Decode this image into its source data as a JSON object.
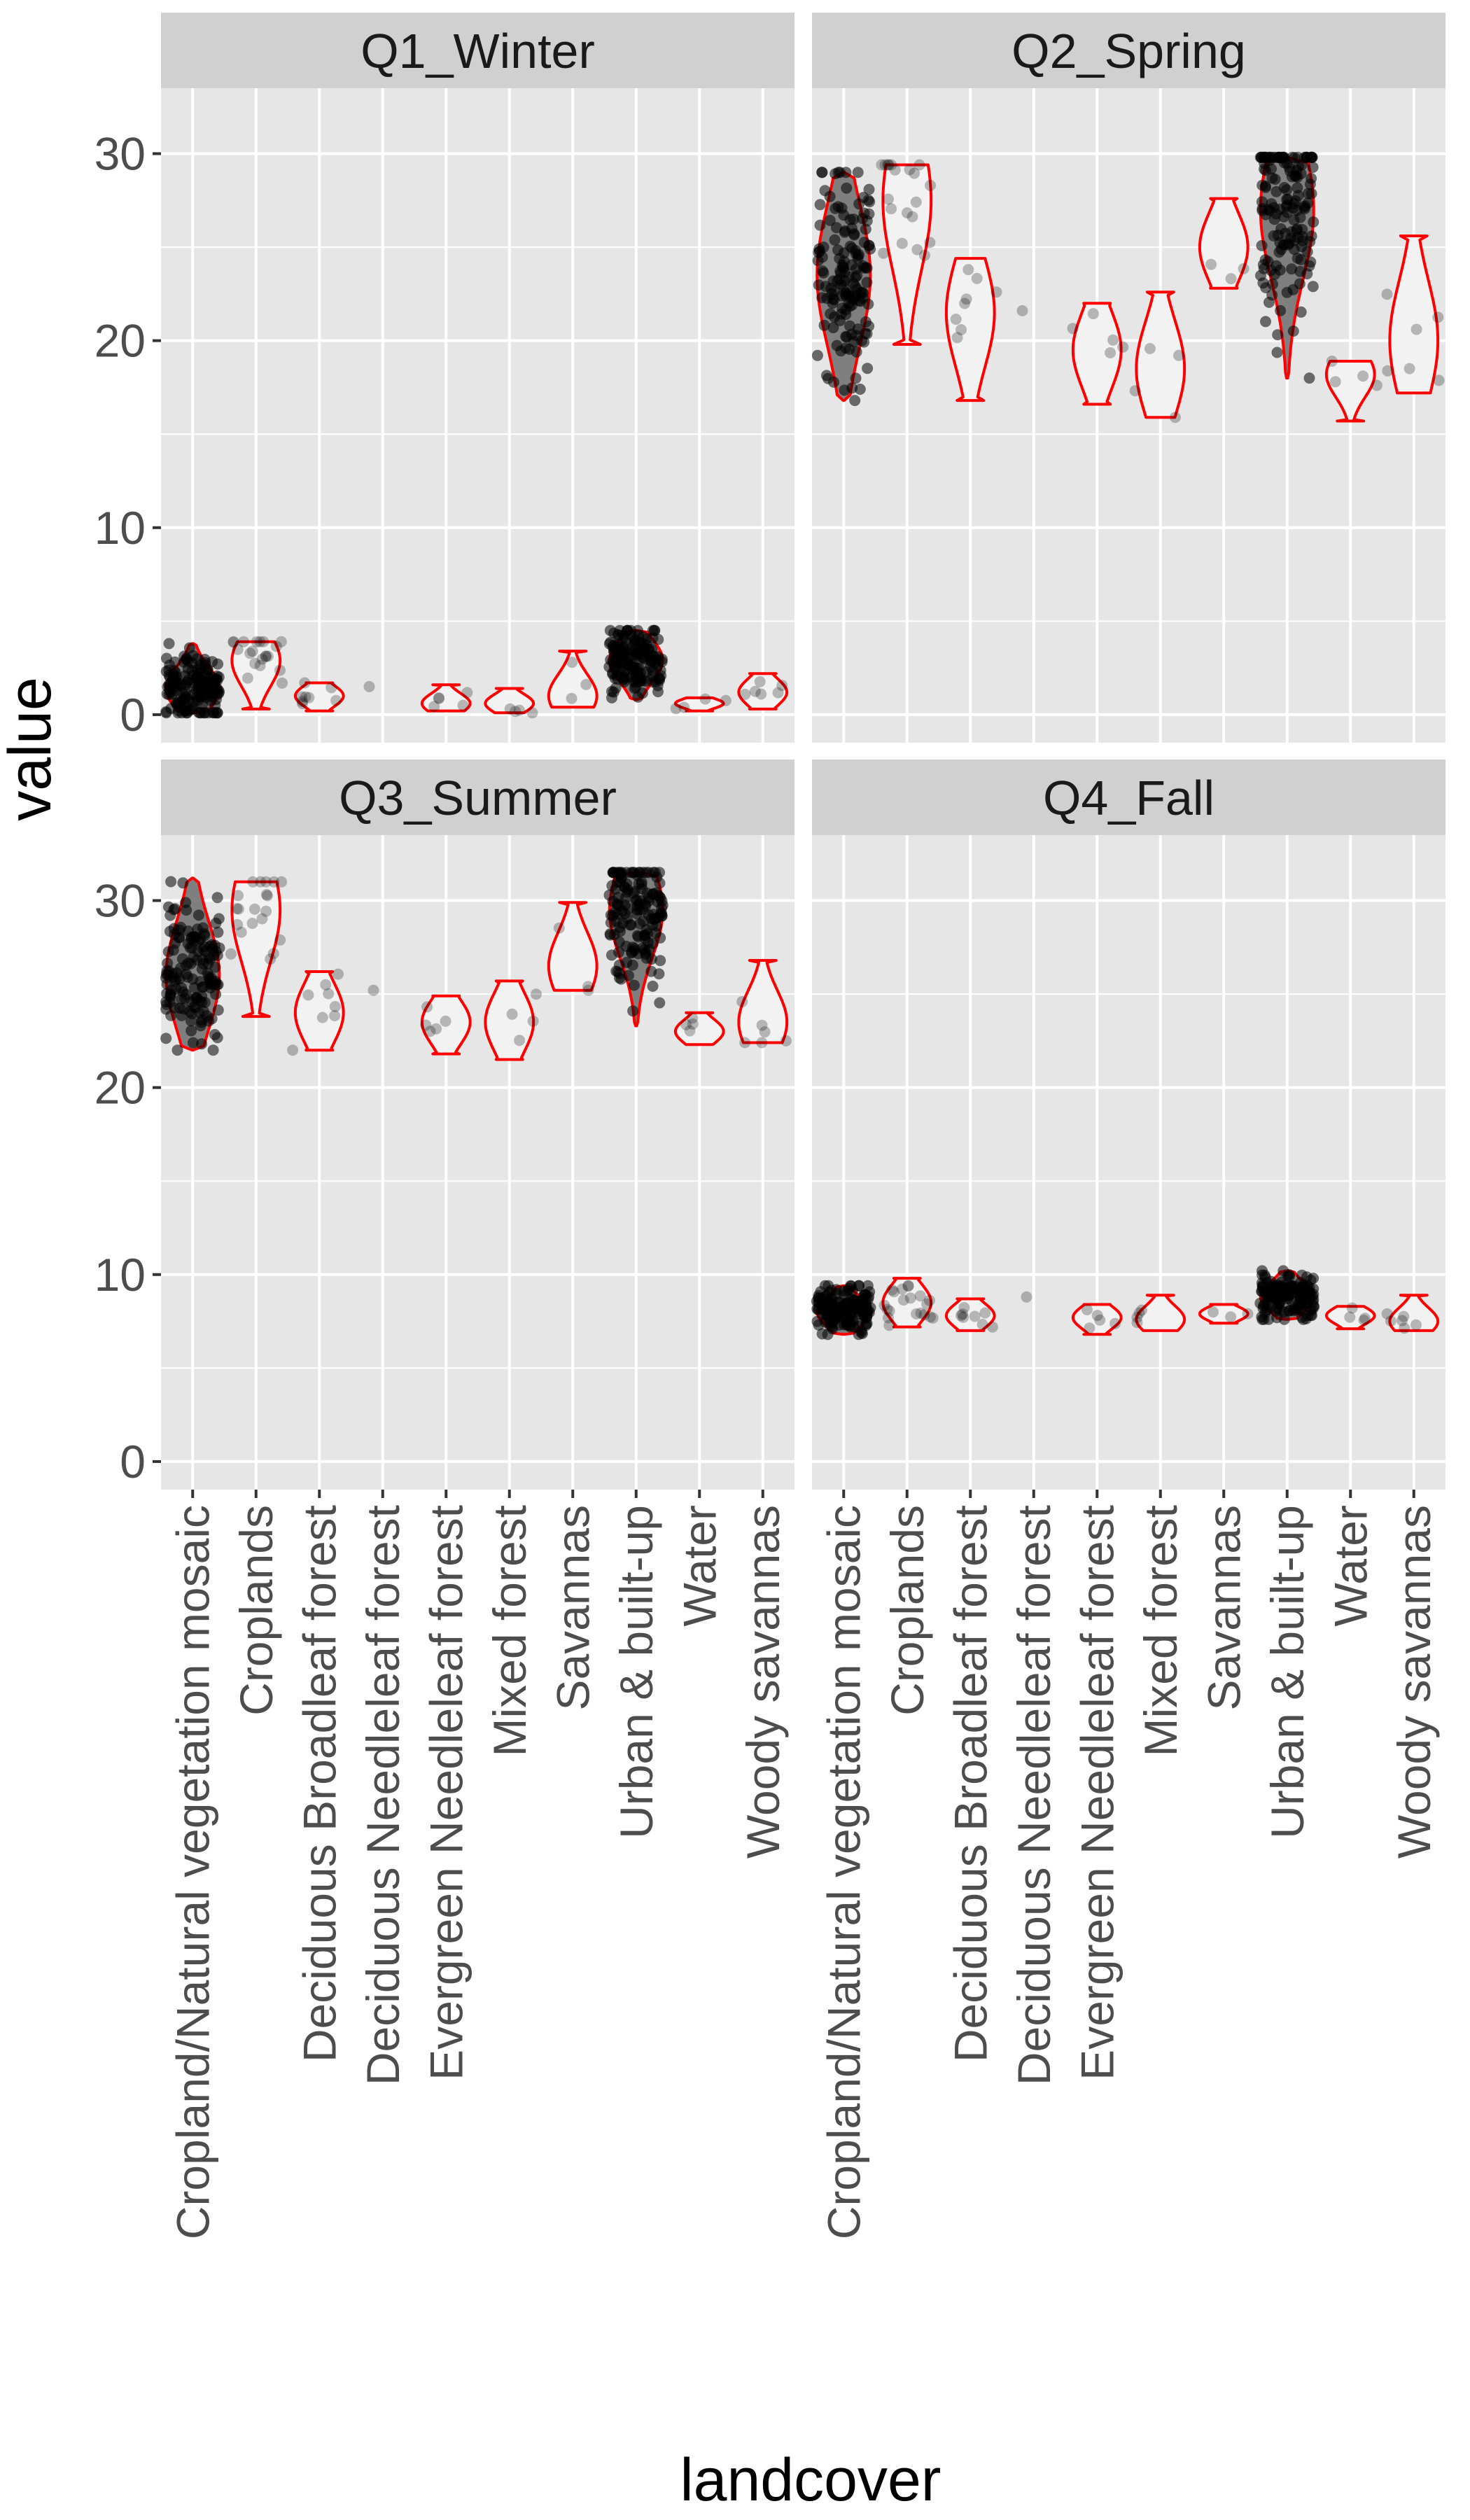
{
  "chart_data": {
    "type": "violin",
    "xlabel": "landcover",
    "ylabel": "value",
    "ylim": [
      -1.5,
      33.5
    ],
    "y_ticks": [
      0,
      10,
      20,
      30
    ],
    "grid": true,
    "legend": "none",
    "colors": {
      "panel_bg": "#e6e6e6",
      "strip_bg": "#d0d0d0",
      "grid": "#ffffff",
      "violin_outline": "#ff0000",
      "violin_fill_dense": "#7f7f7f",
      "violin_fill_sparse": "#f2f2f2",
      "point": "#000000"
    },
    "categories": [
      "Cropland/Natural vegetation mosaic",
      "Croplands",
      "Deciduous Broadleaf forest",
      "Deciduous Needleleaf forest",
      "Evergreen Needleleaf forest",
      "Mixed forest",
      "Savannas",
      "Urban & built-up",
      "Water",
      "Woody savannas"
    ],
    "facets": [
      {
        "name": "Q1_Winter",
        "series": [
          {
            "category": "Cropland/Natural vegetation mosaic",
            "min": 0.1,
            "max": 3.8,
            "mode": 1.4,
            "n": 150
          },
          {
            "category": "Croplands",
            "min": 0.3,
            "max": 3.9,
            "mode": 2.9,
            "n": 20
          },
          {
            "category": "Deciduous Broadleaf forest",
            "min": 0.2,
            "max": 1.7,
            "mode": 1.0,
            "n": 8
          },
          {
            "category": "Deciduous Needleleaf forest",
            "min": 1.5,
            "max": 1.5,
            "mode": 1.5,
            "n": 1
          },
          {
            "category": "Evergreen Needleleaf forest",
            "min": 0.2,
            "max": 1.6,
            "mode": 0.6,
            "n": 5
          },
          {
            "category": "Mixed forest",
            "min": 0.1,
            "max": 1.4,
            "mode": 0.6,
            "n": 4
          },
          {
            "category": "Savannas",
            "min": 0.4,
            "max": 3.4,
            "mode": 1.0,
            "n": 3
          },
          {
            "category": "Urban & built-up",
            "min": 0.8,
            "max": 4.5,
            "mode": 2.9,
            "n": 180
          },
          {
            "category": "Water",
            "min": 0.2,
            "max": 0.9,
            "mode": 0.6,
            "n": 4
          },
          {
            "category": "Woody savannas",
            "min": 0.3,
            "max": 2.2,
            "mode": 1.2,
            "n": 6
          }
        ]
      },
      {
        "name": "Q2_Spring",
        "series": [
          {
            "category": "Cropland/Natural vegetation mosaic",
            "min": 16.8,
            "max": 29.0,
            "mode": 23.5,
            "n": 150
          },
          {
            "category": "Croplands",
            "min": 19.8,
            "max": 29.4,
            "mode": 27.5,
            "n": 20
          },
          {
            "category": "Deciduous Broadleaf forest",
            "min": 16.8,
            "max": 24.4,
            "mode": 21.5,
            "n": 8
          },
          {
            "category": "Deciduous Needleleaf forest",
            "min": 21.6,
            "max": 21.6,
            "mode": 21.6,
            "n": 1
          },
          {
            "category": "Evergreen Needleleaf forest",
            "min": 16.6,
            "max": 22.0,
            "mode": 19.5,
            "n": 5
          },
          {
            "category": "Mixed forest",
            "min": 15.9,
            "max": 22.6,
            "mode": 18.5,
            "n": 4
          },
          {
            "category": "Savannas",
            "min": 22.8,
            "max": 27.6,
            "mode": 25.0,
            "n": 3
          },
          {
            "category": "Urban & built-up",
            "min": 18.0,
            "max": 29.8,
            "mode": 27.0,
            "n": 180
          },
          {
            "category": "Water",
            "min": 15.7,
            "max": 18.9,
            "mode": 18.2,
            "n": 4
          },
          {
            "category": "Woody savannas",
            "min": 17.2,
            "max": 25.6,
            "mode": 20.0,
            "n": 6
          }
        ]
      },
      {
        "name": "Q3_Summer",
        "series": [
          {
            "category": "Cropland/Natural vegetation mosaic",
            "min": 22.0,
            "max": 31.2,
            "mode": 26.0,
            "n": 150
          },
          {
            "category": "Croplands",
            "min": 23.8,
            "max": 31.0,
            "mode": 29.5,
            "n": 20
          },
          {
            "category": "Deciduous Broadleaf forest",
            "min": 22.0,
            "max": 26.2,
            "mode": 24.0,
            "n": 8
          },
          {
            "category": "Deciduous Needleleaf forest",
            "min": 25.2,
            "max": 25.2,
            "mode": 25.2,
            "n": 1
          },
          {
            "category": "Evergreen Needleleaf forest",
            "min": 21.8,
            "max": 24.9,
            "mode": 23.5,
            "n": 5
          },
          {
            "category": "Mixed forest",
            "min": 21.5,
            "max": 25.7,
            "mode": 23.5,
            "n": 4
          },
          {
            "category": "Savannas",
            "min": 25.2,
            "max": 29.9,
            "mode": 26.5,
            "n": 3
          },
          {
            "category": "Urban & built-up",
            "min": 23.3,
            "max": 31.5,
            "mode": 29.5,
            "n": 180
          },
          {
            "category": "Water",
            "min": 22.3,
            "max": 24.0,
            "mode": 23.0,
            "n": 4
          },
          {
            "category": "Woody savannas",
            "min": 22.4,
            "max": 26.8,
            "mode": 23.5,
            "n": 6
          }
        ]
      },
      {
        "name": "Q4_Fall",
        "series": [
          {
            "category": "Cropland/Natural vegetation mosaic",
            "min": 6.8,
            "max": 9.4,
            "mode": 8.0,
            "n": 150
          },
          {
            "category": "Croplands",
            "min": 7.2,
            "max": 9.8,
            "mode": 8.5,
            "n": 20
          },
          {
            "category": "Deciduous Broadleaf forest",
            "min": 7.0,
            "max": 8.7,
            "mode": 7.8,
            "n": 8
          },
          {
            "category": "Deciduous Needleleaf forest",
            "min": 8.8,
            "max": 8.8,
            "mode": 8.8,
            "n": 1
          },
          {
            "category": "Evergreen Needleleaf forest",
            "min": 6.8,
            "max": 8.4,
            "mode": 7.7,
            "n": 5
          },
          {
            "category": "Mixed forest",
            "min": 7.0,
            "max": 8.9,
            "mode": 7.6,
            "n": 4
          },
          {
            "category": "Savannas",
            "min": 7.4,
            "max": 8.4,
            "mode": 7.9,
            "n": 3
          },
          {
            "category": "Urban & built-up",
            "min": 7.6,
            "max": 10.2,
            "mode": 8.8,
            "n": 180
          },
          {
            "category": "Water",
            "min": 7.1,
            "max": 8.3,
            "mode": 7.8,
            "n": 4
          },
          {
            "category": "Woody savannas",
            "min": 7.0,
            "max": 8.9,
            "mode": 7.5,
            "n": 6
          }
        ]
      }
    ]
  }
}
